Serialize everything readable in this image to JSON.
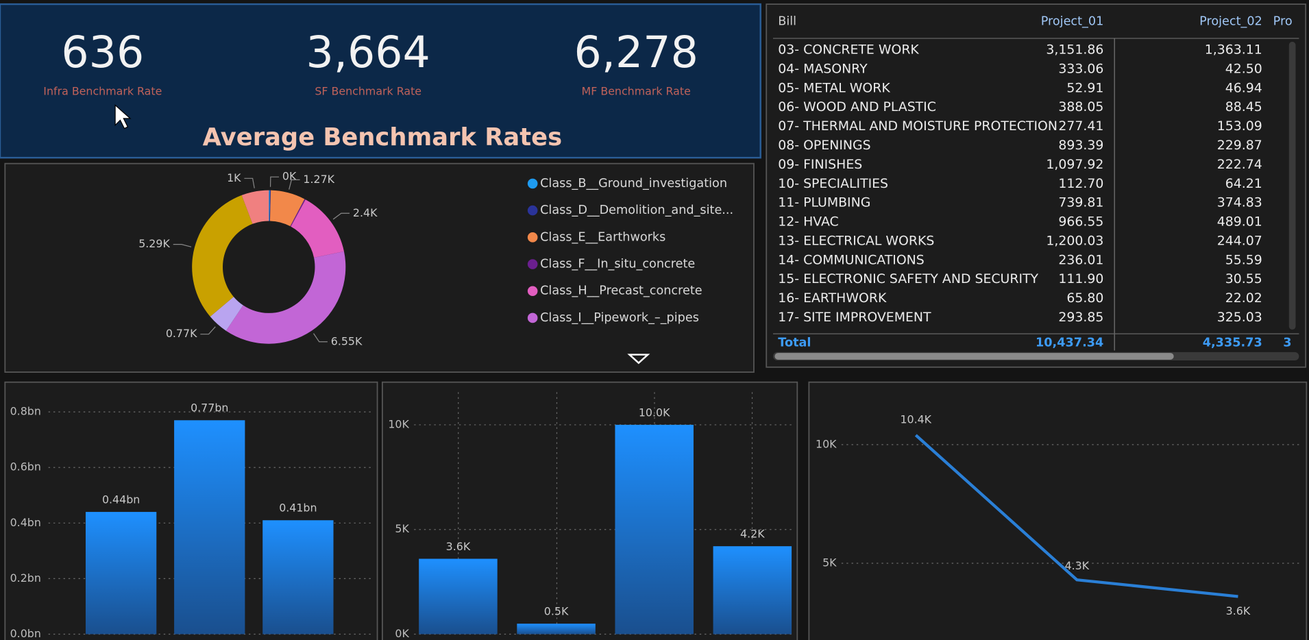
{
  "kpis": [
    {
      "value": "636",
      "label": "Infra Benchmark Rate"
    },
    {
      "value": "3,664",
      "label": "SF Benchmark Rate"
    },
    {
      "value": "6,278",
      "label": "MF Benchmark Rate"
    }
  ],
  "kpi_title": "Average Benchmark Rates",
  "table": {
    "columns": [
      "Bill",
      "Project_01",
      "Project_02",
      "Pro"
    ],
    "rows": [
      [
        "03- CONCRETE WORK",
        "3,151.86",
        "1,363.11"
      ],
      [
        "04- MASONRY",
        "333.06",
        "42.50"
      ],
      [
        "05- METAL WORK",
        "52.91",
        "46.94"
      ],
      [
        "06- WOOD AND PLASTIC",
        "388.05",
        "88.45"
      ],
      [
        "07- THERMAL AND MOISTURE PROTECTION",
        "277.41",
        "153.09"
      ],
      [
        "08- OPENINGS",
        "893.39",
        "229.87"
      ],
      [
        "09- FINISHES",
        "1,097.92",
        "222.74"
      ],
      [
        "10- SPECIALITIES",
        "112.70",
        "64.21"
      ],
      [
        "11- PLUMBING",
        "739.81",
        "374.83"
      ],
      [
        "12- HVAC",
        "966.55",
        "489.01"
      ],
      [
        "13- ELECTRICAL WORKS",
        "1,200.03",
        "244.07"
      ],
      [
        "14- COMMUNICATIONS",
        "236.01",
        "55.59"
      ],
      [
        "15- ELECTRONIC SAFETY AND SECURITY",
        "111.90",
        "30.55"
      ],
      [
        "16- EARTHWORK",
        "65.80",
        "22.02"
      ],
      [
        "17- SITE IMPROVEMENT",
        "293.85",
        "325.03"
      ]
    ],
    "total": [
      "Total",
      "10,437.34",
      "4,335.73",
      "3"
    ]
  },
  "chart_data": [
    {
      "type": "pie",
      "hole": 0.6,
      "categories": [
        "Class_B__Ground_investigation",
        "Class_D__Demolition_and_site...",
        "Class_E__Earthworks",
        "Class_F__In_situ_concrete",
        "Class_H__Precast_concrete",
        "Class_I__Pipework_–_pipes",
        null,
        null,
        null
      ],
      "values": [
        40,
        30,
        1270,
        40,
        2400,
        6550,
        770,
        5290,
        1000
      ],
      "value_labels": [
        null,
        "0K",
        "1.27K",
        null,
        "2.4K",
        "6.55K",
        "0.77K",
        "5.29K",
        "1K"
      ],
      "colors": [
        "#1e9bf0",
        "#2a3399",
        "#f2884a",
        "#6b1f8f",
        "#e25ec0",
        "#c266d6",
        "#b9a4f0",
        "#c9a100",
        "#f08080"
      ]
    },
    {
      "type": "bar",
      "categories": [
        null,
        null,
        null
      ],
      "values": [
        0.44,
        0.77,
        0.41
      ],
      "value_labels": [
        "0.44bn",
        "0.77bn",
        "0.41bn"
      ],
      "color": "#1e8ff5",
      "ylim": [
        0,
        0.85
      ],
      "yticks": [
        {
          "value": 0,
          "label": "0.0bn"
        },
        {
          "value": 0.2,
          "label": "0.2bn"
        },
        {
          "value": 0.4,
          "label": "0.4bn"
        },
        {
          "value": 0.6,
          "label": "0.6bn"
        },
        {
          "value": 0.8,
          "label": "0.8bn"
        }
      ],
      "grid": true
    },
    {
      "type": "bar",
      "categories": [
        null,
        null,
        null,
        null
      ],
      "values": [
        3600,
        500,
        10000,
        4200
      ],
      "value_labels": [
        "3.6K",
        "0.5K",
        "10.0K",
        "4.2K"
      ],
      "color": "#1e8ff5",
      "ylim": [
        0,
        11000
      ],
      "yticks": [
        {
          "value": 0,
          "label": "0K"
        },
        {
          "value": 5000,
          "label": "5K"
        },
        {
          "value": 10000,
          "label": "10K"
        }
      ],
      "grid": true
    },
    {
      "type": "line",
      "categories": [
        null,
        null,
        null
      ],
      "values": [
        10400,
        4300,
        3600
      ],
      "value_labels": [
        "10.4K",
        "4.3K",
        "3.6K"
      ],
      "color": "#2a7fd6",
      "ylim": [
        1800,
        12000
      ],
      "yticks": [
        {
          "value": 5000,
          "label": "5K"
        },
        {
          "value": 10000,
          "label": "10K"
        }
      ],
      "grid": true
    }
  ]
}
